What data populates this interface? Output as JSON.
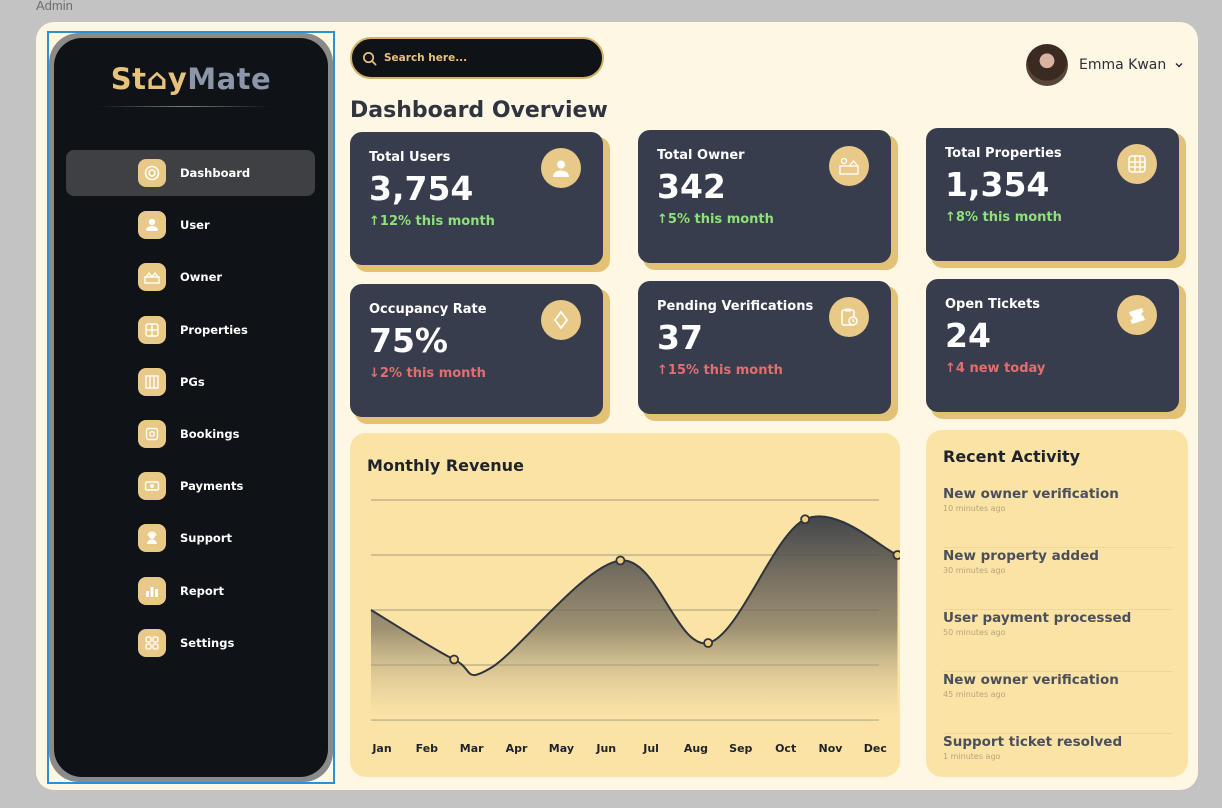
{
  "frame_label": "Admin",
  "brand": {
    "part1": "St",
    "part2": "y",
    "part3": "Mate"
  },
  "sidebar": {
    "items": [
      {
        "label": "Dashboard",
        "icon": "dashboard-icon",
        "active": true
      },
      {
        "label": "User",
        "icon": "user-icon"
      },
      {
        "label": "Owner",
        "icon": "owner-icon"
      },
      {
        "label": "Properties",
        "icon": "properties-icon"
      },
      {
        "label": "PGs",
        "icon": "pgs-icon"
      },
      {
        "label": "Bookings",
        "icon": "bookings-icon"
      },
      {
        "label": "Payments",
        "icon": "payments-icon"
      },
      {
        "label": "Support",
        "icon": "support-icon"
      },
      {
        "label": "Report",
        "icon": "report-icon"
      },
      {
        "label": "Settings",
        "icon": "settings-icon"
      }
    ]
  },
  "search": {
    "placeholder": "Search here..."
  },
  "user": {
    "name": "Emma Kwan"
  },
  "page_title": "Dashboard Overview",
  "stats": [
    {
      "title": "Total Users",
      "value": "3,754",
      "trend": "12% this month",
      "direction": "up",
      "icon": "users-icon"
    },
    {
      "title": "Total Owner",
      "value": "342",
      "trend": "5% this month",
      "direction": "up",
      "icon": "owners-icon"
    },
    {
      "title": "Total Properties",
      "value": "1,354",
      "trend": "8% this month",
      "direction": "up",
      "icon": "properties-grid-icon"
    },
    {
      "title": "Occupancy Rate",
      "value": "75%",
      "trend": "2% this month",
      "direction": "down",
      "icon": "diamond-icon"
    },
    {
      "title": "Pending Verifications",
      "value": "37",
      "trend": "15% this month",
      "direction": "up-red",
      "icon": "clipboard-clock-icon"
    },
    {
      "title": "Open Tickets",
      "value": "24",
      "trend": "4 new today",
      "direction": "up-red",
      "icon": "ticket-icon"
    }
  ],
  "revenue": {
    "title": "Monthly Revenue"
  },
  "chart_data": {
    "type": "area",
    "title": "Monthly Revenue",
    "categories": [
      "Jan",
      "Feb",
      "Mar",
      "Apr",
      "May",
      "Jun",
      "Jul",
      "Aug",
      "Sep",
      "Oct",
      "Nov",
      "Dec"
    ],
    "points": [
      {
        "x": 0,
        "y": 20
      },
      {
        "x": 1.8,
        "y": 11
      },
      {
        "x": 2.6,
        "y": 9.5
      },
      {
        "x": 5.4,
        "y": 29
      },
      {
        "x": 7.3,
        "y": 14
      },
      {
        "x": 9.4,
        "y": 36.5
      },
      {
        "x": 11.4,
        "y": 30
      }
    ],
    "markers": [
      1.8,
      5.4,
      7.3,
      9.4,
      11.4
    ],
    "ylim": [
      0,
      40
    ],
    "grid": true
  },
  "activity": {
    "title": "Recent Activity",
    "items": [
      {
        "text": "New owner verification",
        "time": "10 minutes ago"
      },
      {
        "text": "New property added",
        "time": "30 minutes ago"
      },
      {
        "text": "User payment processed",
        "time": "50 minutes ago"
      },
      {
        "text": "New owner verification",
        "time": "45 minutes ago"
      },
      {
        "text": "Support ticket resolved",
        "time": "1 minutes ago"
      }
    ]
  },
  "colors": {
    "accent": "#e9c987",
    "card": "#373d4d",
    "sidebar": "#0f1217",
    "trend_up": "#8ee07a",
    "trend_down": "#e56d6d"
  }
}
